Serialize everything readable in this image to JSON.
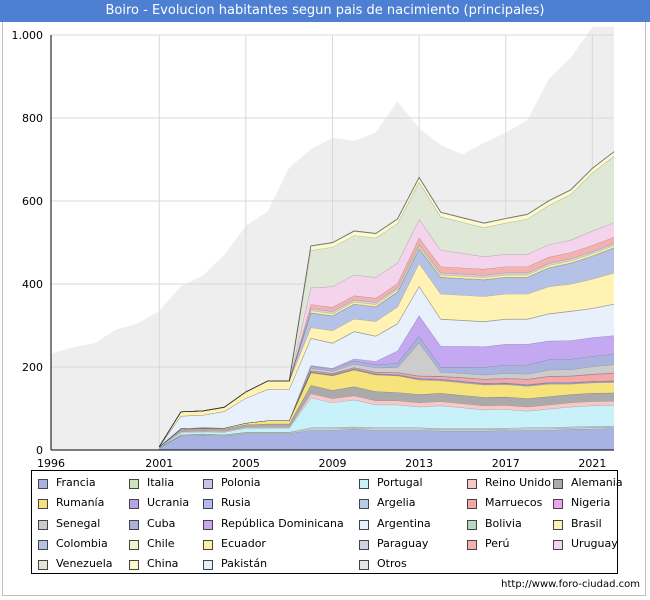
{
  "header": {
    "title": "Boiro - Evolucion habitantes segun pais de nacimiento (principales)"
  },
  "footer": {
    "url": "http://www.foro-ciudad.com"
  },
  "chart_data": {
    "type": "area",
    "title": "Boiro - Evolucion habitantes segun pais de nacimiento (principales)",
    "xlabel": "",
    "ylabel": "",
    "xlim": [
      1996,
      2022
    ],
    "ylim": [
      0,
      1000
    ],
    "grid": true,
    "x_ticks": [
      "1996",
      "2001",
      "2005",
      "2009",
      "2013",
      "2017",
      "2021"
    ],
    "y_ticks": [
      {
        "value": 0,
        "label": "0"
      },
      {
        "value": 200,
        "label": "200"
      },
      {
        "value": 400,
        "label": "400"
      },
      {
        "value": 600,
        "label": "600"
      },
      {
        "value": 800,
        "label": "800"
      },
      {
        "value": 1000,
        "label": "1.000"
      }
    ],
    "total": {
      "name": "Total extranjeros",
      "color": "#eeeeee",
      "x": [
        1996,
        1997,
        1998,
        1999,
        2000,
        2001,
        2002,
        2003,
        2004,
        2005,
        2006,
        2007,
        2008,
        2009,
        2010,
        2011,
        2012,
        2013,
        2014,
        2015,
        2016,
        2017,
        2018,
        2019,
        2020,
        2021,
        2022
      ],
      "values": [
        232,
        247,
        257,
        290,
        305,
        335,
        395,
        420,
        470,
        540,
        575,
        680,
        725,
        752,
        745,
        765,
        840,
        775,
        735,
        712,
        740,
        765,
        795,
        895,
        945,
        1020,
        1020
      ]
    },
    "x": [
      2001,
      2002,
      2003,
      2004,
      2005,
      2006,
      2007,
      2008,
      2009,
      2010,
      2011,
      2012,
      2013,
      2014,
      2015,
      2016,
      2017,
      2018,
      2019,
      2020,
      2021,
      2022
    ],
    "series": [
      {
        "name": "Francia",
        "color": "#a8b3e3",
        "values": [
          5,
          34,
          36,
          34,
          40,
          40,
          40,
          48,
          48,
          50,
          48,
          48,
          48,
          46,
          46,
          46,
          47,
          48,
          48,
          50,
          51,
          52
        ]
      },
      {
        "name": "Italia",
        "color": "#cde3ba",
        "values": [
          1,
          2,
          2,
          2,
          2,
          2,
          2,
          3,
          3,
          3,
          3,
          3,
          3,
          3,
          3,
          3,
          3,
          3,
          3,
          3,
          3,
          3
        ]
      },
      {
        "name": "Polonia",
        "color": "#c3c7ec",
        "values": [
          0,
          1,
          1,
          1,
          1,
          1,
          1,
          3,
          3,
          3,
          3,
          3,
          3,
          3,
          3,
          3,
          3,
          3,
          3,
          3,
          3,
          3
        ]
      },
      {
        "name": "Portugal",
        "color": "#c9f1f9",
        "values": [
          2,
          5,
          5,
          6,
          10,
          10,
          10,
          72,
          60,
          65,
          55,
          55,
          50,
          55,
          50,
          45,
          45,
          40,
          45,
          48,
          50,
          50
        ]
      },
      {
        "name": "Reino Unido",
        "color": "#f8c8c8",
        "values": [
          0,
          2,
          2,
          2,
          2,
          2,
          2,
          10,
          10,
          10,
          10,
          10,
          10,
          10,
          10,
          10,
          10,
          10,
          10,
          10,
          10,
          10
        ]
      },
      {
        "name": "Alemania",
        "color": "#aaaaaa",
        "values": [
          0,
          6,
          6,
          6,
          6,
          8,
          8,
          20,
          20,
          22,
          22,
          20,
          20,
          20,
          20,
          20,
          20,
          20,
          20,
          20,
          20,
          20
        ]
      },
      {
        "name": "Rumanía",
        "color": "#f6e37c",
        "values": [
          0,
          2,
          2,
          2,
          4,
          8,
          8,
          30,
          35,
          40,
          40,
          40,
          35,
          30,
          30,
          30,
          30,
          30,
          30,
          25,
          25,
          25
        ]
      },
      {
        "name": "Ucrania",
        "color": "#b8a3e8",
        "values": [
          0,
          0,
          0,
          0,
          0,
          0,
          0,
          1,
          1,
          1,
          1,
          1,
          2,
          2,
          2,
          2,
          2,
          2,
          2,
          2,
          2,
          2
        ]
      },
      {
        "name": "Rusia",
        "color": "#b0b8ee",
        "values": [
          0,
          0,
          0,
          0,
          0,
          0,
          0,
          1,
          1,
          1,
          1,
          1,
          1,
          1,
          1,
          1,
          1,
          1,
          1,
          1,
          1,
          1
        ]
      },
      {
        "name": "Argelia",
        "color": "#b5cde6",
        "values": [
          0,
          0,
          0,
          0,
          0,
          0,
          0,
          1,
          1,
          1,
          1,
          1,
          1,
          1,
          1,
          1,
          1,
          1,
          1,
          1,
          1,
          1
        ]
      },
      {
        "name": "Marruecos",
        "color": "#f5a8a8",
        "values": [
          0,
          0,
          0,
          0,
          0,
          0,
          0,
          2,
          2,
          2,
          3,
          4,
          5,
          6,
          8,
          9,
          10,
          12,
          14,
          15,
          16,
          18
        ]
      },
      {
        "name": "Nigeria",
        "color": "#eea3ee",
        "values": [
          0,
          0,
          0,
          0,
          0,
          0,
          0,
          1,
          1,
          1,
          1,
          1,
          1,
          1,
          1,
          1,
          1,
          1,
          1,
          1,
          1,
          1
        ]
      },
      {
        "name": "Senegal",
        "color": "#cccccc",
        "values": [
          0,
          0,
          0,
          0,
          0,
          0,
          0,
          5,
          5,
          8,
          10,
          12,
          80,
          10,
          10,
          10,
          12,
          12,
          15,
          15,
          18,
          20
        ]
      },
      {
        "name": "Cuba",
        "color": "#a9b3dd",
        "values": [
          0,
          0,
          0,
          0,
          0,
          0,
          0,
          5,
          5,
          8,
          8,
          10,
          15,
          12,
          15,
          18,
          20,
          22,
          25,
          25,
          25,
          25
        ]
      },
      {
        "name": "República Dominicana",
        "color": "#c4a8f2",
        "values": [
          0,
          0,
          0,
          0,
          0,
          0,
          0,
          2,
          2,
          5,
          8,
          30,
          50,
          50,
          50,
          50,
          50,
          50,
          45,
          45,
          45,
          45
        ]
      },
      {
        "name": "Argentina",
        "color": "#e8f1fb",
        "values": [
          0,
          30,
          30,
          40,
          60,
          75,
          75,
          65,
          60,
          65,
          60,
          65,
          70,
          65,
          62,
          60,
          60,
          60,
          65,
          70,
          70,
          75
        ]
      },
      {
        "name": "Bolivia",
        "color": "#b5d8c4",
        "values": [
          0,
          0,
          0,
          0,
          0,
          0,
          0,
          1,
          1,
          1,
          1,
          1,
          1,
          1,
          1,
          1,
          1,
          1,
          1,
          1,
          1,
          1
        ]
      },
      {
        "name": "Brasil",
        "color": "#fff2b3",
        "values": [
          0,
          10,
          10,
          10,
          15,
          20,
          20,
          25,
          30,
          30,
          35,
          40,
          55,
          60,
          60,
          60,
          60,
          60,
          65,
          65,
          70,
          75
        ]
      },
      {
        "name": "Colombia",
        "color": "#b3c2e6",
        "values": [
          0,
          0,
          0,
          0,
          0,
          0,
          0,
          35,
          35,
          35,
          35,
          35,
          35,
          40,
          40,
          40,
          40,
          40,
          45,
          50,
          55,
          60
        ]
      },
      {
        "name": "Chile",
        "color": "#eef5cf",
        "values": [
          0,
          0,
          0,
          0,
          0,
          0,
          0,
          1,
          1,
          1,
          1,
          1,
          1,
          1,
          1,
          1,
          1,
          1,
          1,
          1,
          1,
          1
        ]
      },
      {
        "name": "Ecuador",
        "color": "#fff0a0",
        "values": [
          0,
          0,
          0,
          0,
          0,
          0,
          0,
          5,
          5,
          5,
          5,
          5,
          5,
          5,
          5,
          5,
          5,
          5,
          5,
          5,
          5,
          5
        ]
      },
      {
        "name": "Paraguay",
        "color": "#cdd6e0",
        "values": [
          0,
          0,
          0,
          0,
          0,
          0,
          0,
          5,
          5,
          5,
          5,
          5,
          5,
          5,
          5,
          5,
          5,
          5,
          5,
          5,
          5,
          5
        ]
      },
      {
        "name": "Perú",
        "color": "#f5b0b0",
        "values": [
          0,
          0,
          0,
          0,
          0,
          0,
          0,
          10,
          10,
          10,
          10,
          10,
          15,
          15,
          15,
          15,
          15,
          15,
          15,
          15,
          15,
          15
        ]
      },
      {
        "name": "Uruguay",
        "color": "#f4d4ec",
        "values": [
          0,
          0,
          0,
          0,
          0,
          0,
          0,
          40,
          50,
          50,
          50,
          50,
          45,
          40,
          35,
          30,
          30,
          30,
          30,
          30,
          35,
          35
        ]
      },
      {
        "name": "Venezuela",
        "color": "#dfe8d6",
        "values": [
          0,
          0,
          0,
          0,
          0,
          0,
          0,
          90,
          95,
          95,
          95,
          95,
          90,
          80,
          75,
          70,
          75,
          85,
          95,
          110,
          140,
          160
        ]
      },
      {
        "name": "China",
        "color": "#fdfbcc",
        "values": [
          0,
          0,
          0,
          0,
          0,
          0,
          0,
          10,
          10,
          10,
          10,
          10,
          10,
          10,
          10,
          10,
          10,
          10,
          10,
          10,
          10,
          10
        ]
      },
      {
        "name": "Pakistán",
        "color": "#e3eefb",
        "values": [
          0,
          0,
          0,
          0,
          0,
          0,
          0,
          1,
          1,
          1,
          1,
          1,
          1,
          1,
          1,
          1,
          1,
          1,
          1,
          1,
          1,
          1
        ]
      },
      {
        "name": "Otros",
        "color": "#e6e6e6",
        "values": [
          0,
          0,
          0,
          0,
          0,
          0,
          0,
          0,
          0,
          0,
          0,
          0,
          0,
          0,
          0,
          0,
          0,
          0,
          0,
          0,
          0,
          0
        ]
      }
    ]
  }
}
